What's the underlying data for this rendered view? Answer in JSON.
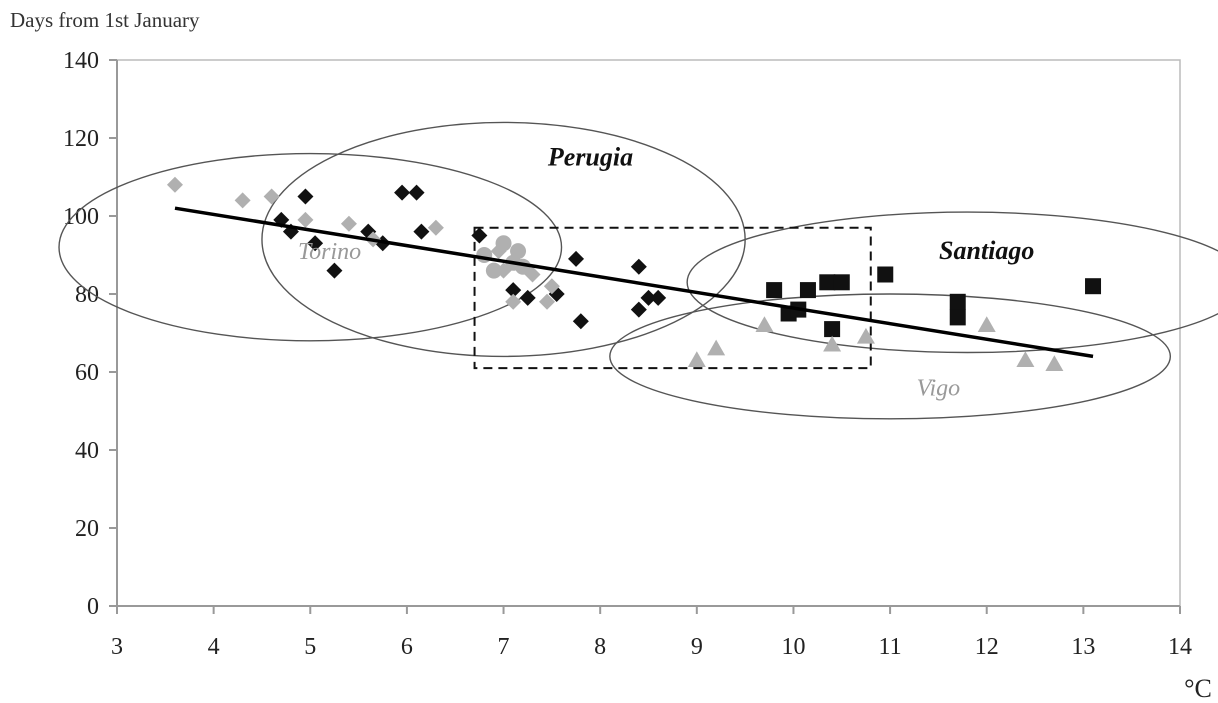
{
  "chart_data": {
    "type": "scatter",
    "title": "",
    "ylabel": "Days from  1st January",
    "xlabel": "°C",
    "xlim": [
      3,
      14
    ],
    "ylim": [
      0,
      140
    ],
    "x_ticks": [
      3,
      4,
      5,
      6,
      7,
      8,
      9,
      10,
      11,
      12,
      13,
      14
    ],
    "y_ticks": [
      0,
      20,
      40,
      60,
      80,
      100,
      120,
      140
    ],
    "grid": false,
    "colors": {
      "axis": "#999999",
      "black": "#111111",
      "gray": "#b0b0b0",
      "ellipse": "#555555"
    },
    "groups": [
      {
        "label": "Torino",
        "label_style": "gray-italic",
        "center": [
          5.0,
          92
        ],
        "radii": [
          2.6,
          24
        ]
      },
      {
        "label": "Perugia",
        "label_style": "black-bold-italic",
        "center": [
          7.0,
          94
        ],
        "radii": [
          2.5,
          30
        ]
      },
      {
        "label": "Santiago",
        "label_style": "black-bold-italic",
        "center": [
          11.8,
          83
        ],
        "radii": [
          2.9,
          18
        ]
      },
      {
        "label": "Vigo",
        "label_style": "gray-italic",
        "center": [
          11.0,
          64
        ],
        "radii": [
          2.9,
          16
        ]
      }
    ],
    "series": [
      {
        "marker": "diamond",
        "color": "#111111",
        "points": [
          [
            4.7,
            99
          ],
          [
            4.8,
            96
          ],
          [
            4.95,
            105
          ],
          [
            5.05,
            93
          ],
          [
            5.25,
            86
          ],
          [
            5.6,
            96
          ],
          [
            5.75,
            93
          ],
          [
            5.95,
            106
          ],
          [
            6.1,
            106
          ],
          [
            6.15,
            96
          ],
          [
            6.75,
            95
          ],
          [
            7.1,
            81
          ],
          [
            7.25,
            79
          ],
          [
            7.55,
            80
          ],
          [
            7.75,
            89
          ],
          [
            7.8,
            73
          ],
          [
            8.4,
            87
          ],
          [
            8.4,
            76
          ],
          [
            8.5,
            79
          ],
          [
            8.6,
            79
          ]
        ]
      },
      {
        "marker": "diamond",
        "color": "#b0b0b0",
        "points": [
          [
            3.6,
            108
          ],
          [
            4.3,
            104
          ],
          [
            4.6,
            105
          ],
          [
            4.95,
            99
          ],
          [
            5.4,
            98
          ],
          [
            5.65,
            94
          ],
          [
            6.3,
            97
          ],
          [
            6.95,
            91
          ],
          [
            7.0,
            86
          ],
          [
            7.1,
            78
          ],
          [
            7.3,
            85
          ],
          [
            7.45,
            78
          ],
          [
            7.5,
            82
          ]
        ]
      },
      {
        "marker": "circle",
        "color": "#b0b0b0",
        "points": [
          [
            6.9,
            86
          ],
          [
            7.0,
            93
          ],
          [
            7.15,
            91
          ],
          [
            7.2,
            87
          ],
          [
            7.1,
            88
          ],
          [
            6.8,
            90
          ]
        ]
      },
      {
        "marker": "square",
        "color": "#111111",
        "points": [
          [
            9.8,
            81
          ],
          [
            9.95,
            75
          ],
          [
            10.05,
            76
          ],
          [
            10.15,
            81
          ],
          [
            10.35,
            83
          ],
          [
            10.4,
            71
          ],
          [
            10.5,
            83
          ],
          [
            10.95,
            85
          ],
          [
            11.7,
            78
          ],
          [
            11.7,
            74
          ],
          [
            13.1,
            82
          ]
        ]
      },
      {
        "marker": "triangle",
        "color": "#b0b0b0",
        "points": [
          [
            9.0,
            63
          ],
          [
            9.2,
            66
          ],
          [
            9.7,
            72
          ],
          [
            10.4,
            67
          ],
          [
            10.75,
            69
          ],
          [
            12.0,
            72
          ],
          [
            12.4,
            63
          ],
          [
            12.7,
            62
          ]
        ]
      }
    ],
    "trend_line": {
      "x": [
        3.6,
        13.1
      ],
      "y": [
        102,
        64
      ]
    },
    "highlight_box": {
      "x": [
        6.7,
        10.8
      ],
      "y": [
        61,
        97
      ]
    }
  }
}
